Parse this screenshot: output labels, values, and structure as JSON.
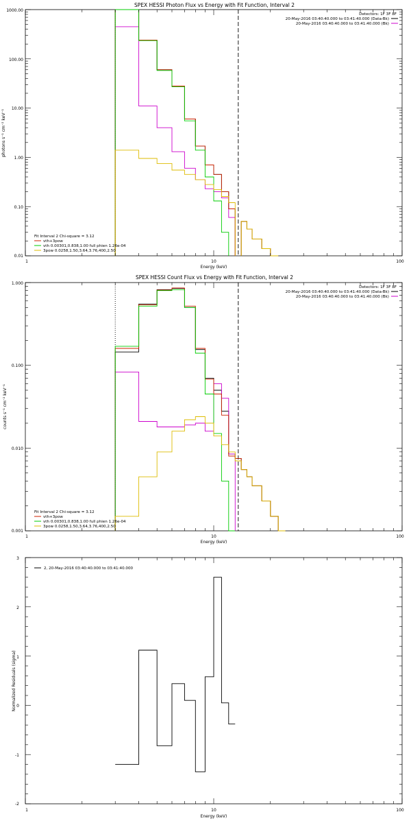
{
  "chart_data": [
    {
      "type": "line",
      "title": "SPEX HESSI Photon Flux vs Energy with Fit Function, Interval 2",
      "xlabel": "Energy (keV)",
      "ylabel": "photons s⁻¹ cm⁻² keV⁻¹",
      "xscale": "log",
      "yscale": "log",
      "xlim": [
        1,
        100
      ],
      "ylim": [
        0.01,
        1000
      ],
      "xticks": [
        1,
        10,
        100
      ],
      "xtick_labels": [
        "1",
        "10",
        "100"
      ],
      "yticks": [
        0.01,
        0.1,
        1,
        10,
        100,
        1000
      ],
      "ytick_labels": [
        "0.01",
        "0.10",
        "1.00",
        "10.00",
        "100.00",
        "1000.00"
      ],
      "grid": false,
      "bin_edges": [
        3.0,
        4.0,
        5.0,
        6.0,
        7.0,
        8.0,
        9.0,
        10.0,
        11.0,
        12.0,
        13.0,
        14.0,
        15.0,
        16.0,
        18.0,
        20.0,
        22.0,
        24.0
      ],
      "vlines": [
        {
          "x": 3.0,
          "style": "dotted",
          "color": "#000000"
        },
        {
          "x": 3.0,
          "style": "dotted",
          "color": "#ffa500"
        },
        {
          "x": 13.5,
          "style": "dashed",
          "color": "#000000"
        }
      ],
      "legend_top_right": [
        "Detectors: 1F 3F 8F",
        "20-May-2016 03:40:40.000 to 03:41:40.000 (Data-Bk)",
        "20-May-2016 03:40:40.000 to 03:41:40.000 (Bk)"
      ],
      "legend_bottom_left": [
        "Fit Interval 2   Chi-square = 3.12",
        "vth+3pow",
        "vth 0.00301,0.838,1.00  full phien 1.26e-04",
        "3pow 0.0258,1.50,3.64,3.76,400,2.50"
      ],
      "series": [
        {
          "name": "Data-Bk",
          "color": "#000000",
          "values": [
            1000,
            240,
            60,
            28,
            6,
            1.7,
            0.7,
            0.45,
            0.2,
            0.09,
            null,
            0.05,
            0.035,
            0.022,
            0.014,
            0.01,
            null
          ]
        },
        {
          "name": "Bk",
          "color": "#cc00cc",
          "values": [
            450,
            11,
            4,
            1.3,
            0.6,
            0.35,
            0.23,
            0.2,
            0.15,
            0.06,
            null,
            null,
            null,
            null,
            null,
            null,
            null
          ]
        },
        {
          "name": "vth+3pow",
          "color": "#cc2200",
          "values": [
            1000,
            240,
            60,
            28,
            6,
            1.7,
            0.7,
            0.45,
            0.2,
            0.09,
            null,
            0.05,
            0.035,
            0.022,
            0.014,
            0.01,
            null
          ]
        },
        {
          "name": "vth",
          "color": "#00cc00",
          "values": [
            1000,
            235,
            58,
            27,
            5.5,
            1.4,
            0.4,
            0.13,
            0.03,
            null,
            null,
            null,
            null,
            null,
            null,
            null,
            null
          ]
        },
        {
          "name": "3pow",
          "color": "#ddbb00",
          "values": [
            1.4,
            0.95,
            0.75,
            0.55,
            0.45,
            0.35,
            0.28,
            0.22,
            0.16,
            0.12,
            null,
            0.05,
            0.035,
            0.022,
            0.014,
            0.01,
            null
          ]
        }
      ]
    },
    {
      "type": "line",
      "title": "SPEX HESSI Count Flux vs Energy with Fit Function, Interval 2",
      "xlabel": "Energy (keV)",
      "ylabel": "counts s⁻¹ cm⁻² keV⁻¹",
      "xscale": "log",
      "yscale": "log",
      "xlim": [
        1,
        100
      ],
      "ylim": [
        0.001,
        1.0
      ],
      "xticks": [
        1,
        10,
        100
      ],
      "xtick_labels": [
        "1",
        "10",
        "100"
      ],
      "yticks": [
        0.001,
        0.01,
        0.1,
        1.0
      ],
      "ytick_labels": [
        "0.001",
        "0.010",
        "0.100",
        "1.000"
      ],
      "grid": false,
      "bin_edges": [
        3.0,
        4.0,
        5.0,
        6.0,
        7.0,
        8.0,
        9.0,
        10.0,
        11.0,
        12.0,
        13.0,
        14.0,
        15.0,
        16.0,
        18.0,
        20.0,
        22.0,
        24.0
      ],
      "vlines": [
        {
          "x": 3.0,
          "style": "dotted",
          "color": "#000000"
        },
        {
          "x": 13.5,
          "style": "dashed",
          "color": "#000000"
        }
      ],
      "legend_top_right": [
        "Detectors: 1F 3F 8F",
        "20-May-2016 03:40:40.000 to 03:41:40.000 (Data-Bk)",
        "20-May-2016 03:40:40.000 to 03:41:40.000 (Bk)"
      ],
      "legend_bottom_left": [
        "Fit Interval 2   Chi-square = 3.12",
        "vth+3pow",
        "vth 0.00301,0.838,1.00  full phien 1.26e-04",
        "3pow 0.0258,1.50,3.64,3.76,400,2.50"
      ],
      "series": [
        {
          "name": "Data-Bk",
          "color": "#000000",
          "values": [
            0.145,
            0.55,
            0.82,
            0.85,
            0.5,
            0.155,
            0.07,
            0.05,
            0.028,
            0.0085,
            0.0075,
            0.0055,
            0.0045,
            0.0035,
            0.0023,
            0.0015,
            0.0009
          ]
        },
        {
          "name": "Bk",
          "color": "#cc00cc",
          "values": [
            0.083,
            0.021,
            0.018,
            0.018,
            0.019,
            0.02,
            0.016,
            0.06,
            0.04,
            0.0085,
            null,
            null,
            null,
            null,
            null,
            null,
            null
          ]
        },
        {
          "name": "vth+3pow",
          "color": "#cc2200",
          "values": [
            0.16,
            0.54,
            0.81,
            0.86,
            0.52,
            0.16,
            0.068,
            0.045,
            0.025,
            0.008,
            0.0075,
            0.0055,
            0.0045,
            0.0035,
            0.0023,
            0.0015,
            0.0009
          ]
        },
        {
          "name": "vth",
          "color": "#00cc00",
          "values": [
            0.17,
            0.52,
            0.8,
            0.82,
            0.5,
            0.14,
            0.045,
            0.015,
            0.004,
            0.0009,
            null,
            null,
            null,
            null,
            null,
            null,
            null
          ]
        },
        {
          "name": "3pow",
          "color": "#ddbb00",
          "values": [
            0.0015,
            0.0045,
            0.009,
            0.016,
            0.022,
            0.024,
            0.02,
            0.014,
            0.011,
            0.009,
            0.007,
            0.0055,
            0.0045,
            0.0035,
            0.0023,
            0.0015,
            0.0009
          ]
        }
      ]
    },
    {
      "type": "line",
      "title": "",
      "xlabel": "Energy (keV)",
      "ylabel": "Normalized Residuals (sigma)",
      "xscale": "log",
      "yscale": "linear",
      "xlim": [
        1,
        100
      ],
      "ylim": [
        -2,
        3
      ],
      "xticks": [
        1,
        10,
        100
      ],
      "xtick_labels": [
        "1",
        "10",
        "100"
      ],
      "yticks": [
        -2,
        -1,
        0,
        1,
        2,
        3
      ],
      "ytick_labels": [
        "-2",
        "-1",
        "0",
        "1",
        "2",
        "3"
      ],
      "grid": false,
      "bin_edges": [
        3.0,
        4.0,
        5.0,
        6.0,
        7.0,
        8.0,
        9.0,
        10.0,
        11.0,
        12.0,
        13.0
      ],
      "legend_top_left": [
        "2, 20-May-2016 03:40:40.000 to 03:41:40.000"
      ],
      "series": [
        {
          "name": "2, 20-May-2016 03:40:40.000 to 03:41:40.000",
          "color": "#000000",
          "values": [
            -1.2,
            1.12,
            -0.82,
            0.44,
            0.1,
            -1.35,
            0.58,
            2.6,
            0.05,
            -0.38
          ]
        }
      ]
    }
  ]
}
